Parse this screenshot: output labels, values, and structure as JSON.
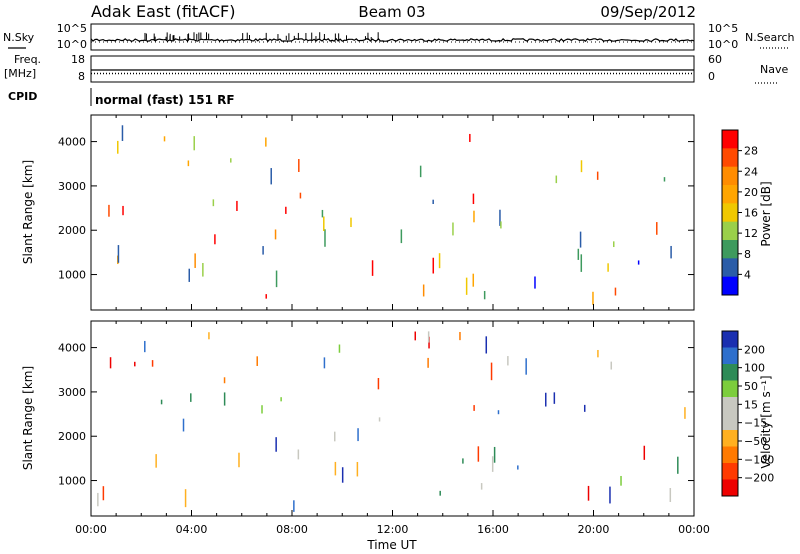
{
  "header": {
    "title": "Adak East (fitACF)",
    "beam": "Beam 03",
    "date": "09/Sep/2012"
  },
  "strip_labels": {
    "nsky": "N.Sky",
    "nsearch": "N.Search",
    "freq_top": "Freq.",
    "freq_unit": "[MHz]",
    "nave": "Nave",
    "cpid": "CPID",
    "cpid_value": "normal (fast) 151 RF"
  },
  "chart_data": [
    {
      "type": "line",
      "name": "noise-panel",
      "y_left_ticks": [
        "10^5",
        "10^0"
      ],
      "y_right_ticks": [
        "10^5",
        "10^0"
      ]
    },
    {
      "type": "line",
      "name": "freq-nave-panel",
      "y_left_ticks": [
        "18",
        "8"
      ],
      "y_right_ticks": [
        "60",
        "0"
      ]
    },
    {
      "type": "heatmap",
      "name": "power-panel",
      "ylabel": "Slant Range [km]",
      "ylim": [
        200,
        4600
      ],
      "y_ticks": [
        1000,
        2000,
        3000,
        4000
      ],
      "xlim_hours": [
        0,
        24
      ],
      "colorbar": {
        "label": "Power [dB]",
        "ticks": [
          "28",
          "24",
          "20",
          "16",
          "12",
          "8",
          "4"
        ],
        "colors": [
          "#ff0000",
          "#ff4a00",
          "#ff8c00",
          "#ffa500",
          "#f0c800",
          "#9ad04a",
          "#3e9a5e",
          "#2a5ca8",
          "#0000ff"
        ]
      }
    },
    {
      "type": "heatmap",
      "name": "velocity-panel",
      "ylabel": "Slant Range [km]",
      "ylim": [
        200,
        4600
      ],
      "y_ticks": [
        1000,
        2000,
        3000,
        4000
      ],
      "xlim_hours": [
        0,
        24
      ],
      "xlabel": "Time UT",
      "x_ticks": [
        "00:00",
        "04:00",
        "08:00",
        "12:00",
        "16:00",
        "20:00",
        "00:00"
      ],
      "colorbar": {
        "label": "Velocity [m s⁻¹]",
        "ticks": [
          "200",
          "100",
          "50",
          "15",
          "−15",
          "−50",
          "−100",
          "−200"
        ],
        "colors": [
          "#1a2fb0",
          "#2e6fcc",
          "#2e8b57",
          "#7ccd3c",
          "#c8c8c0",
          "#c8c8c0",
          "#ffb020",
          "#ff7a00",
          "#ff3a00",
          "#ee0000"
        ]
      }
    }
  ]
}
